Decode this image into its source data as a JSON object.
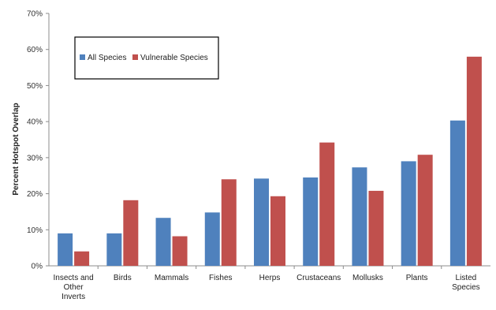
{
  "chart_data": {
    "type": "bar",
    "title": "",
    "xlabel": "",
    "ylabel": "Percent Hotspot Overlap",
    "ylim": [
      0,
      70
    ],
    "yticks": [
      0,
      10,
      20,
      30,
      40,
      50,
      60,
      70
    ],
    "ytick_labels": [
      "0%",
      "10%",
      "20%",
      "30%",
      "40%",
      "50%",
      "60%",
      "70%"
    ],
    "grid": false,
    "legend_position": "top-left",
    "categories": [
      [
        "Insects and",
        "Other",
        "Inverts"
      ],
      [
        "Birds"
      ],
      [
        "Mammals"
      ],
      [
        "Fishes"
      ],
      [
        "Herps"
      ],
      [
        "Crustaceans"
      ],
      [
        "Mollusks"
      ],
      [
        "Plants"
      ],
      [
        "Listed",
        "Species"
      ]
    ],
    "series": [
      {
        "name": "All Species",
        "color": "#4f81bd",
        "values": [
          9,
          9,
          13.3,
          14.8,
          24.2,
          24.5,
          27.3,
          29,
          40.3
        ]
      },
      {
        "name": "Vulnerable Species",
        "color": "#c0504d",
        "values": [
          4,
          18.2,
          8.2,
          24,
          19.3,
          34.2,
          20.8,
          30.8,
          58
        ]
      }
    ]
  }
}
